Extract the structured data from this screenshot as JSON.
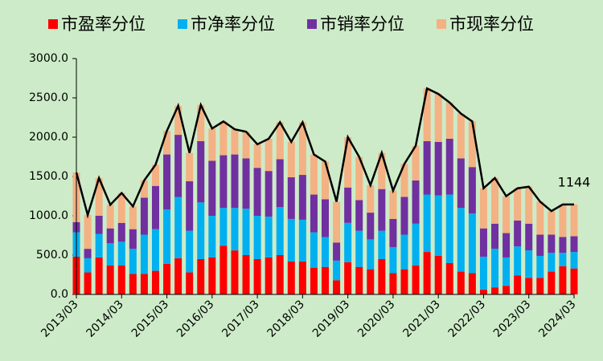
{
  "chart_data": {
    "type": "stacked-bar-line",
    "categories": [
      "2013/03",
      null,
      null,
      null,
      "2014/03",
      null,
      null,
      null,
      "2015/03",
      null,
      null,
      null,
      "2016/03",
      null,
      null,
      null,
      "2017/03",
      null,
      null,
      null,
      "2018/03",
      null,
      null,
      null,
      "2019/03",
      null,
      null,
      null,
      "2020/03",
      null,
      null,
      null,
      "2021/03",
      null,
      null,
      null,
      "2022/03",
      null,
      null,
      null,
      "2023/03",
      null,
      null,
      null,
      "2024/03"
    ],
    "series": [
      {
        "name": "市盈率分位",
        "color": "#ff0000",
        "values": [
          480,
          280,
          470,
          370,
          370,
          260,
          260,
          300,
          390,
          460,
          280,
          450,
          470,
          620,
          560,
          500,
          450,
          470,
          500,
          420,
          420,
          340,
          350,
          180,
          410,
          350,
          320,
          450,
          270,
          320,
          370,
          540,
          490,
          400,
          290,
          270,
          60,
          90,
          110,
          240,
          210,
          210,
          290,
          360,
          330
        ]
      },
      {
        "name": "市净率分位",
        "color": "#00b0f0",
        "values": [
          310,
          180,
          300,
          280,
          300,
          320,
          500,
          530,
          690,
          780,
          530,
          720,
          530,
          480,
          540,
          590,
          550,
          520,
          610,
          540,
          530,
          450,
          380,
          250,
          500,
          460,
          380,
          360,
          330,
          440,
          530,
          730,
          770,
          870,
          810,
          760,
          420,
          490,
          360,
          370,
          350,
          280,
          240,
          170,
          210
        ]
      },
      {
        "name": "市销率分位",
        "color": "#7030a0",
        "values": [
          130,
          120,
          230,
          190,
          240,
          250,
          470,
          550,
          700,
          790,
          630,
          780,
          700,
          670,
          680,
          640,
          610,
          580,
          610,
          530,
          570,
          480,
          480,
          230,
          450,
          390,
          340,
          530,
          360,
          480,
          550,
          680,
          680,
          710,
          630,
          590,
          360,
          320,
          310,
          330,
          340,
          270,
          230,
          200,
          200
        ]
      },
      {
        "name": "市现率分位",
        "color": "#f4b183",
        "values": [
          630,
          430,
          480,
          300,
          380,
          290,
          220,
          270,
          300,
          370,
          360,
          460,
          410,
          430,
          320,
          340,
          300,
          410,
          470,
          450,
          670,
          510,
          480,
          520,
          640,
          550,
          350,
          460,
          360,
          420,
          440,
          670,
          610,
          460,
          570,
          580,
          510,
          580,
          470,
          410,
          470,
          420,
          300,
          414,
          404
        ]
      }
    ],
    "total": [
      1550,
      1010,
      1480,
      1140,
      1290,
      1120,
      1450,
      1650,
      2080,
      2400,
      1800,
      2410,
      2110,
      2200,
      2100,
      2070,
      1910,
      1980,
      2190,
      1940,
      2190,
      1780,
      1690,
      1180,
      2000,
      1750,
      1390,
      1800,
      1320,
      1660,
      1890,
      2620,
      2550,
      2440,
      2300,
      2200,
      1350,
      1480,
      1250,
      1350,
      1370,
      1180,
      1060,
      1144,
      1144
    ],
    "line_color": "#000000",
    "ylim": [
      0,
      3000
    ],
    "yticks": [
      {
        "value": 0,
        "label": "0.0"
      },
      {
        "value": 500,
        "label": "500.0"
      },
      {
        "value": 1000,
        "label": "1000.0"
      },
      {
        "value": 1500,
        "label": "1500.0"
      },
      {
        "value": 2000,
        "label": "2000.0"
      },
      {
        "value": 2500,
        "label": "2500.0"
      },
      {
        "value": 3000,
        "label": "3000.0"
      }
    ],
    "legend": "top"
  }
}
